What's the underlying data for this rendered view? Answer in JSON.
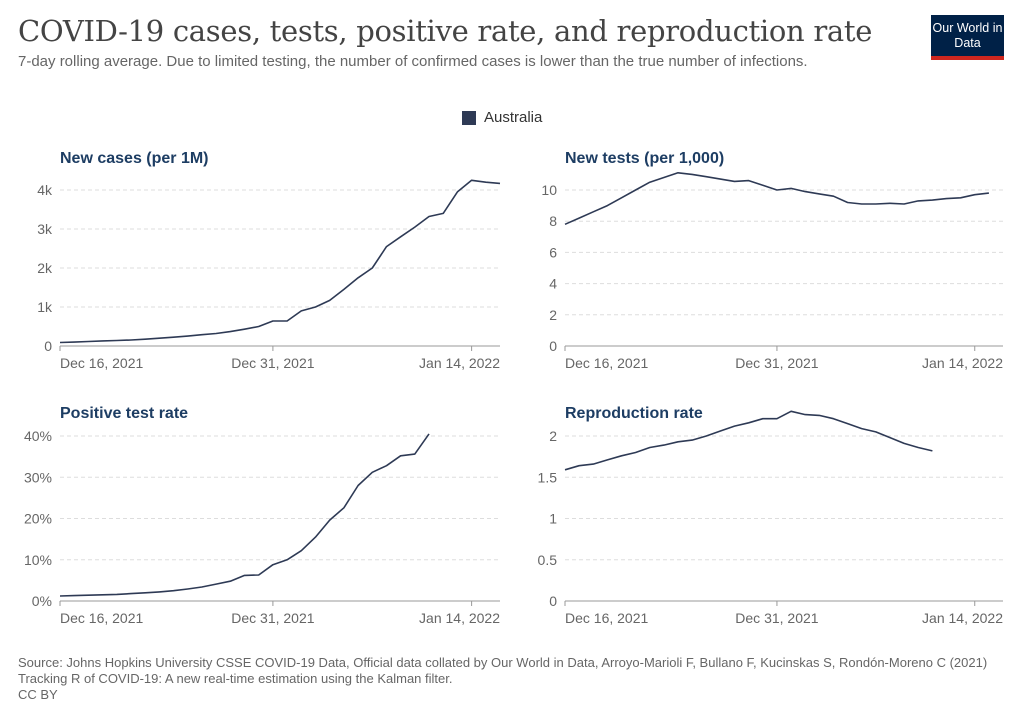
{
  "header": {
    "title": "COVID-19 cases, tests, positive rate, and reproduction rate",
    "subtitle": "7-day rolling average. Due to limited testing, the number of confirmed cases is lower than the true number of infections.",
    "logo": "Our World in Data"
  },
  "legend": {
    "label": "Australia",
    "color": "#2e3a55"
  },
  "footer": {
    "source": "Source: Johns Hopkins University CSSE COVID-19 Data, Official data collated by Our World in Data, Arroyo-Marioli F, Bullano F, Kucinskas S, Rondón-Moreno C (2021) Tracking R of COVID-19: A new real-time estimation using the Kalman filter.",
    "license": "CC BY"
  },
  "chart_data": [
    {
      "type": "line",
      "title": "New cases (per 1M)",
      "x_ticks": [
        "Dec 16, 2021",
        "Dec 31, 2021",
        "Jan 14, 2022"
      ],
      "y_ticks": [
        "0",
        "1k",
        "2k",
        "3k",
        "4k"
      ],
      "y_tick_values": [
        0,
        1000,
        2000,
        3000,
        4000
      ],
      "ylim": [
        0,
        4300
      ],
      "xlim": [
        "2021-12-16",
        "2022-01-16"
      ],
      "series": [
        {
          "color": "#2e3a55",
          "x": [
            "2021-12-16",
            "2021-12-17",
            "2021-12-18",
            "2021-12-19",
            "2021-12-20",
            "2021-12-21",
            "2021-12-22",
            "2021-12-23",
            "2021-12-24",
            "2021-12-25",
            "2021-12-26",
            "2021-12-27",
            "2021-12-28",
            "2021-12-29",
            "2021-12-30",
            "2021-12-31",
            "2022-01-01",
            "2022-01-02",
            "2022-01-03",
            "2022-01-04",
            "2022-01-05",
            "2022-01-06",
            "2022-01-07",
            "2022-01-08",
            "2022-01-09",
            "2022-01-10",
            "2022-01-11",
            "2022-01-12",
            "2022-01-13",
            "2022-01-14",
            "2022-01-15",
            "2022-01-16"
          ],
          "values": [
            90,
            100,
            115,
            130,
            140,
            155,
            175,
            200,
            225,
            255,
            290,
            320,
            370,
            430,
            500,
            640,
            640,
            900,
            1000,
            1170,
            1450,
            1750,
            2000,
            2550,
            2800,
            3050,
            3320,
            3400,
            3950,
            4250,
            4200,
            4170
          ]
        }
      ]
    },
    {
      "type": "line",
      "title": "New tests (per 1,000)",
      "x_ticks": [
        "Dec 16, 2021",
        "Dec 31, 2021",
        "Jan 14, 2022"
      ],
      "y_ticks": [
        "0",
        "2",
        "4",
        "6",
        "8",
        "10"
      ],
      "y_tick_values": [
        0,
        2,
        4,
        6,
        8,
        10
      ],
      "ylim": [
        0,
        11.5
      ],
      "xlim": [
        "2021-12-16",
        "2022-01-16"
      ],
      "series": [
        {
          "color": "#2e3a55",
          "x": [
            "2021-12-16",
            "2021-12-17",
            "2021-12-18",
            "2021-12-19",
            "2021-12-20",
            "2021-12-21",
            "2021-12-22",
            "2021-12-23",
            "2021-12-24",
            "2021-12-25",
            "2021-12-26",
            "2021-12-27",
            "2021-12-28",
            "2021-12-29",
            "2021-12-30",
            "2021-12-31",
            "2022-01-01",
            "2022-01-02",
            "2022-01-03",
            "2022-01-04",
            "2022-01-05",
            "2022-01-06",
            "2022-01-07",
            "2022-01-08",
            "2022-01-09",
            "2022-01-10",
            "2022-01-11",
            "2022-01-12",
            "2022-01-13",
            "2022-01-14",
            "2022-01-15"
          ],
          "values": [
            7.8,
            8.2,
            8.6,
            9.0,
            9.5,
            10.0,
            10.5,
            10.8,
            11.1,
            11.0,
            10.85,
            10.7,
            10.55,
            10.6,
            10.3,
            10.0,
            10.1,
            9.9,
            9.75,
            9.6,
            9.2,
            9.1,
            9.1,
            9.15,
            9.1,
            9.3,
            9.35,
            9.45,
            9.5,
            9.7,
            9.8
          ]
        }
      ]
    },
    {
      "type": "line",
      "title": "Positive test rate",
      "x_ticks": [
        "Dec 16, 2021",
        "Dec 31, 2021",
        "Jan 14, 2022"
      ],
      "y_ticks": [
        "0%",
        "10%",
        "20%",
        "30%",
        "40%"
      ],
      "y_tick_values": [
        0,
        10,
        20,
        30,
        40
      ],
      "ylim": [
        0,
        42
      ],
      "xlim": [
        "2021-12-16",
        "2022-01-16"
      ],
      "series": [
        {
          "color": "#2e3a55",
          "x": [
            "2021-12-16",
            "2021-12-17",
            "2021-12-18",
            "2021-12-19",
            "2021-12-20",
            "2021-12-21",
            "2021-12-22",
            "2021-12-23",
            "2021-12-24",
            "2021-12-25",
            "2021-12-26",
            "2021-12-27",
            "2021-12-28",
            "2021-12-29",
            "2021-12-30",
            "2021-12-31",
            "2022-01-01",
            "2022-01-02",
            "2022-01-03",
            "2022-01-04",
            "2022-01-05",
            "2022-01-06",
            "2022-01-07",
            "2022-01-08",
            "2022-01-09",
            "2022-01-10",
            "2022-01-11",
            "2022-01-12",
            "2022-01-13"
          ],
          "values": [
            1.2,
            1.3,
            1.4,
            1.5,
            1.6,
            1.8,
            2.0,
            2.2,
            2.5,
            2.9,
            3.4,
            4.1,
            4.8,
            6.2,
            6.3,
            8.8,
            10.0,
            12.2,
            15.5,
            19.6,
            22.6,
            28.0,
            31.2,
            32.8,
            35.2,
            35.6,
            40.5,
            null,
            null
          ]
        }
      ]
    },
    {
      "type": "line",
      "title": "Reproduction rate",
      "x_ticks": [
        "Dec 16, 2021",
        "Dec 31, 2021",
        "Jan 14, 2022"
      ],
      "y_ticks": [
        "0",
        "0.5",
        "1",
        "1.5",
        "2"
      ],
      "y_tick_values": [
        0,
        0.5,
        1,
        1.5,
        2
      ],
      "ylim": [
        0,
        2.38
      ],
      "xlim": [
        "2021-12-16",
        "2022-01-16"
      ],
      "series": [
        {
          "color": "#2e3a55",
          "x": [
            "2021-12-16",
            "2021-12-17",
            "2021-12-18",
            "2021-12-19",
            "2021-12-20",
            "2021-12-21",
            "2021-12-22",
            "2021-12-23",
            "2021-12-24",
            "2021-12-25",
            "2021-12-26",
            "2021-12-27",
            "2021-12-28",
            "2021-12-29",
            "2021-12-30",
            "2021-12-31",
            "2022-01-01",
            "2022-01-02",
            "2022-01-03",
            "2022-01-04",
            "2022-01-05",
            "2022-01-06",
            "2022-01-07",
            "2022-01-08",
            "2022-01-09",
            "2022-01-10",
            "2022-01-11",
            "2022-01-12",
            "2022-01-13"
          ],
          "values": [
            1.59,
            1.64,
            1.66,
            1.71,
            1.76,
            1.8,
            1.86,
            1.89,
            1.93,
            1.95,
            2.0,
            2.06,
            2.12,
            2.16,
            2.21,
            2.21,
            2.3,
            2.26,
            2.25,
            2.21,
            2.15,
            2.09,
            2.05,
            1.98,
            1.91,
            1.86,
            1.82,
            null,
            null
          ]
        }
      ]
    }
  ]
}
